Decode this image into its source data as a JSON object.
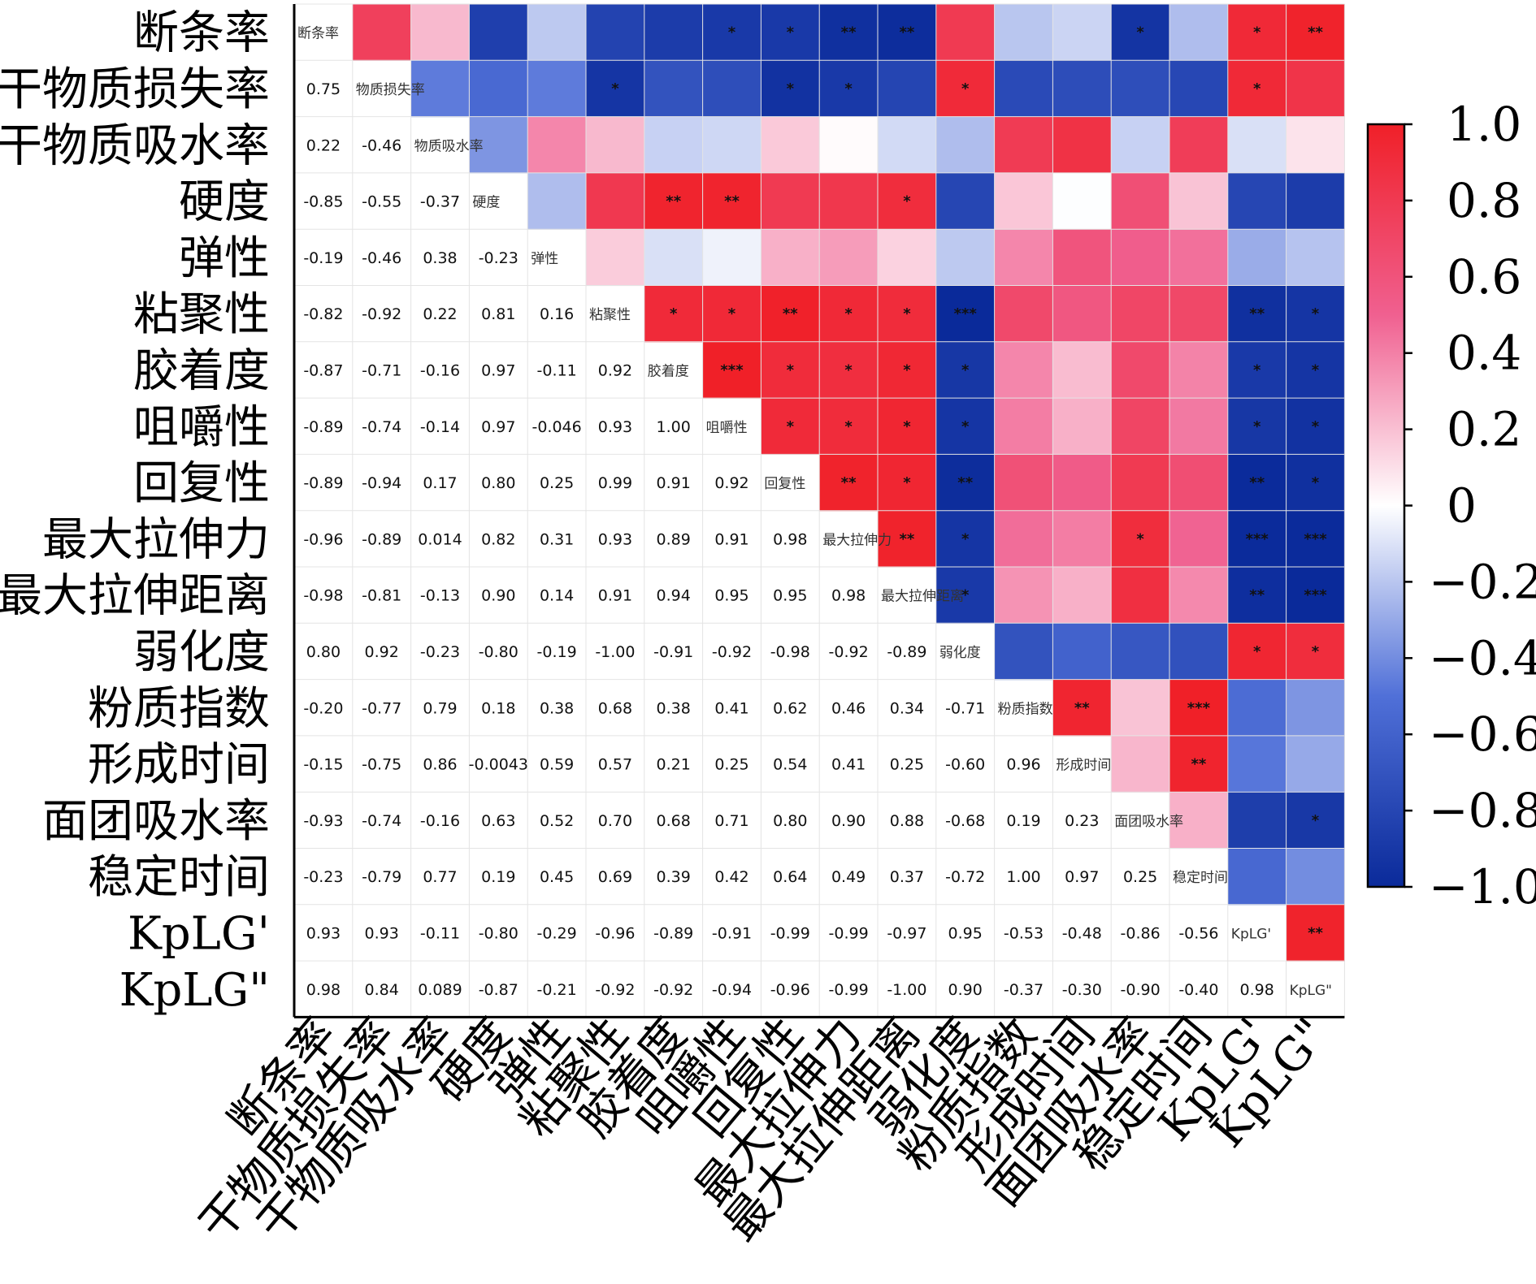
{
  "chart_data": {
    "type": "heatmap",
    "title": "",
    "variables": [
      "断条率",
      "干物质损失率",
      "干物质吸水率",
      "硬度",
      "弹性",
      "粘聚性",
      "胶着度",
      "咀嚼性",
      "回复性",
      "最大拉伸力",
      "最大拉伸距离",
      "弱化度",
      "粉质指数",
      "形成时间",
      "面团吸水率",
      "稳定时间",
      "KpLG'",
      "KpLG\""
    ],
    "diagonal_labels": [
      "断条率",
      "物质损失率",
      "物质吸水率",
      "硬度",
      "弹性",
      "粘聚性",
      "胶着度",
      "咀嚼性",
      "回复性",
      "最大拉伸力",
      "最大拉伸距离",
      "弱化度",
      "粉质指数",
      "形成时间",
      "面团吸水率",
      "稳定时间",
      "KpLG'",
      "KpLG\""
    ],
    "lower_labels": [
      [],
      [
        "0.75"
      ],
      [
        "0.22",
        "-0.46"
      ],
      [
        "-0.85",
        "-0.55",
        "-0.37"
      ],
      [
        "-0.19",
        "-0.46",
        "0.38",
        "-0.23"
      ],
      [
        "-0.82",
        "-0.92",
        "0.22",
        "0.81",
        "0.16"
      ],
      [
        "-0.87",
        "-0.71",
        "-0.16",
        "0.97",
        "-0.11",
        "0.92"
      ],
      [
        "-0.89",
        "-0.74",
        "-0.14",
        "0.97",
        "-0.046",
        "0.93",
        "1.00"
      ],
      [
        "-0.89",
        "-0.94",
        "0.17",
        "0.80",
        "0.25",
        "0.99",
        "0.91",
        "0.92"
      ],
      [
        "-0.96",
        "-0.89",
        "0.014",
        "0.82",
        "0.31",
        "0.93",
        "0.89",
        "0.91",
        "0.98"
      ],
      [
        "-0.98",
        "-0.81",
        "-0.13",
        "0.90",
        "0.14",
        "0.91",
        "0.94",
        "0.95",
        "0.95",
        "0.98"
      ],
      [
        "0.80",
        "0.92",
        "-0.23",
        "-0.80",
        "-0.19",
        "-1.00",
        "-0.91",
        "-0.92",
        "-0.98",
        "-0.92",
        "-0.89"
      ],
      [
        "-0.20",
        "-0.77",
        "0.79",
        "0.18",
        "0.38",
        "0.68",
        "0.38",
        "0.41",
        "0.62",
        "0.46",
        "0.34",
        "-0.71"
      ],
      [
        "-0.15",
        "-0.75",
        "0.86",
        "-0.0043",
        "0.59",
        "0.57",
        "0.21",
        "0.25",
        "0.54",
        "0.41",
        "0.25",
        "-0.60",
        "0.96"
      ],
      [
        "-0.93",
        "-0.74",
        "-0.16",
        "0.63",
        "0.52",
        "0.70",
        "0.68",
        "0.71",
        "0.80",
        "0.90",
        "0.88",
        "-0.68",
        "0.19",
        "0.23"
      ],
      [
        "-0.23",
        "-0.79",
        "0.77",
        "0.19",
        "0.45",
        "0.69",
        "0.39",
        "0.42",
        "0.64",
        "0.49",
        "0.37",
        "-0.72",
        "1.00",
        "0.97",
        "0.25"
      ],
      [
        "0.93",
        "0.93",
        "-0.11",
        "-0.80",
        "-0.29",
        "-0.96",
        "-0.89",
        "-0.91",
        "-0.99",
        "-0.99",
        "-0.97",
        "0.95",
        "-0.53",
        "-0.48",
        "-0.86",
        "-0.56"
      ],
      [
        "0.98",
        "0.84",
        "0.089",
        "-0.87",
        "-0.21",
        "-0.92",
        "-0.92",
        "-0.94",
        "-0.96",
        "-0.99",
        "-1.00",
        "0.90",
        "-0.37",
        "-0.30",
        "-0.90",
        "-0.40",
        "0.98"
      ]
    ],
    "significance": {
      "0,7": "*",
      "0,8": "*",
      "0,9": "**",
      "0,10": "**",
      "0,14": "*",
      "0,16": "*",
      "0,17": "**",
      "1,5": "*",
      "1,8": "*",
      "1,9": "*",
      "1,11": "*",
      "1,16": "*",
      "3,6": "**",
      "3,7": "**",
      "3,10": "*",
      "5,6": "*",
      "5,7": "*",
      "5,8": "**",
      "5,9": "*",
      "5,10": "*",
      "5,11": "***",
      "5,16": "**",
      "5,17": "*",
      "6,7": "***",
      "6,8": "*",
      "6,9": "*",
      "6,10": "*",
      "6,11": "*",
      "6,16": "*",
      "6,17": "*",
      "7,8": "*",
      "7,9": "*",
      "7,10": "*",
      "7,11": "*",
      "7,16": "*",
      "7,17": "*",
      "8,9": "**",
      "8,10": "*",
      "8,11": "**",
      "8,16": "**",
      "8,17": "*",
      "9,10": "**",
      "9,11": "*",
      "9,14": "*",
      "9,16": "***",
      "9,17": "***",
      "10,11": "*",
      "10,16": "**",
      "10,17": "***",
      "11,16": "*",
      "11,17": "*",
      "12,13": "**",
      "12,15": "***",
      "13,15": "**",
      "14,17": "*",
      "16,17": "**"
    },
    "colorbar": {
      "min": -1.0,
      "max": 1.0,
      "tick_labels": [
        "1.0",
        "0.8",
        "0.6",
        "0.4",
        "0.2",
        "0",
        "−0.2",
        "−0.4",
        "−0.6",
        "−0.8",
        "−1.0"
      ],
      "colors": {
        "negative": "#0a2a9a",
        "zero": "#ffffff",
        "positive": "#f02028"
      }
    },
    "layout_note": "lower triangle shows coefficient text, upper triangle shows colored cells with significance stars"
  }
}
